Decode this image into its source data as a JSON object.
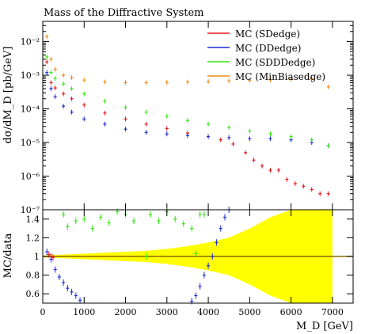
{
  "chart_data": [
    {
      "type": "scatter",
      "title": "Mass of the Diffractive System",
      "ylabel": "dσ/dM_D [pb/GeV]",
      "xlabel": "",
      "log_y": true,
      "xlim": [
        0,
        7500
      ],
      "ylim": [
        1e-07,
        0.04
      ],
      "yticks": [
        {
          "value": 1e-07,
          "label": "10⁻⁷"
        },
        {
          "value": 1e-06,
          "label": "10⁻⁶"
        },
        {
          "value": 1e-05,
          "label": "10⁻⁵"
        },
        {
          "value": 0.0001,
          "label": "10⁻⁴"
        },
        {
          "value": 0.001,
          "label": "10⁻³"
        },
        {
          "value": 0.01,
          "label": "10⁻²"
        }
      ],
      "grid": false,
      "legend_position": "top-right",
      "series": [
        {
          "name": "MC (SDedge)",
          "color": "#e8141b",
          "x": [
            100,
            200,
            300,
            500,
            700,
            1000,
            1500,
            2000,
            2500,
            3000,
            3500,
            4000,
            4300,
            4600,
            4900,
            5100,
            5300,
            5500,
            5700,
            5900,
            6100,
            6300,
            6500,
            6700,
            6900
          ],
          "y": [
            0.0025,
            0.0006,
            0.00042,
            0.00028,
            0.0002,
            0.00013,
            7.5e-05,
            5e-05,
            3.5e-05,
            2.6e-05,
            1.9e-05,
            1.5e-05,
            1.2e-05,
            9e-06,
            5e-06,
            3e-06,
            2e-06,
            1.5e-06,
            1.5e-06,
            8e-07,
            6e-07,
            5e-07,
            4e-07,
            3e-07,
            3e-07
          ]
        },
        {
          "name": "MC (DDedge)",
          "color": "#1c2bd6",
          "x": [
            100,
            200,
            300,
            500,
            700,
            1000,
            1500,
            2000,
            2500,
            3000,
            3500,
            4000,
            4500,
            5000,
            5500,
            6000,
            6500,
            6900
          ],
          "y": [
            0.0012,
            0.0004,
            0.00023,
            0.00012,
            8e-05,
            5e-05,
            3.5e-05,
            2.5e-05,
            2e-05,
            1.8e-05,
            1.6e-05,
            1.5e-05,
            1.4e-05,
            1.3e-05,
            1.3e-05,
            1.2e-05,
            1e-05,
            8e-06
          ]
        },
        {
          "name": "MC (SDDDedge)",
          "color": "#2ee80e",
          "x": [
            100,
            200,
            300,
            500,
            700,
            1000,
            1500,
            2000,
            2500,
            3000,
            3500,
            4000,
            4500,
            5000,
            5500,
            6000,
            6500,
            6900
          ],
          "y": [
            0.0035,
            0.0012,
            0.0008,
            0.00055,
            0.0004,
            0.00028,
            0.00017,
            0.00011,
            8e-05,
            6e-05,
            4.5e-05,
            3.5e-05,
            2.8e-05,
            2.2e-05,
            1.8e-05,
            1.5e-05,
            1.2e-05,
            8e-06
          ]
        },
        {
          "name": "MC (MinBiasedge)",
          "color": "#f08a1a",
          "x": [
            100,
            200,
            300,
            500,
            700,
            1000,
            1500,
            2000,
            2500,
            3000,
            3500,
            4000,
            4500,
            5000,
            5500,
            6000,
            6500,
            6900
          ],
          "y": [
            0.014,
            0.003,
            0.0015,
            0.001,
            0.00085,
            0.00072,
            0.00063,
            0.00061,
            0.0006,
            0.00061,
            0.00063,
            0.00065,
            0.00068,
            0.0007,
            0.00073,
            0.00075,
            0.00078,
            0.00045
          ]
        }
      ]
    },
    {
      "type": "scatter",
      "title": "",
      "ylabel": "MC/data",
      "xlabel": "M_D [GeV]",
      "xlim": [
        0,
        7500
      ],
      "ylim": [
        0.5,
        1.5
      ],
      "xticks": [
        0,
        1000,
        2000,
        3000,
        4000,
        5000,
        6000,
        7000
      ],
      "yticks": [
        0.6,
        0.8,
        1,
        1.2,
        1.4
      ],
      "grid": false,
      "reference_line": 1,
      "band": {
        "color": "#ffff00",
        "x": [
          0,
          500,
          1000,
          1500,
          2000,
          2500,
          3000,
          3500,
          4000,
          4500,
          5000,
          5500,
          6000,
          6500,
          7000
        ],
        "half_width": [
          0.01,
          0.02,
          0.03,
          0.04,
          0.05,
          0.06,
          0.08,
          0.11,
          0.15,
          0.2,
          0.3,
          0.42,
          0.5,
          0.5,
          0.5
        ]
      },
      "series": [
        {
          "name": "MC (SDedge)",
          "color": "#e8141b",
          "x": [
            150,
            200,
            250
          ],
          "y": [
            1.02,
            1.0,
            0.99
          ]
        },
        {
          "name": "MC (DDedge)",
          "color": "#1c2bd6",
          "x": [
            100,
            200,
            300,
            400,
            500,
            600,
            700,
            800,
            900,
            3600,
            3700,
            3800,
            3900,
            4000,
            4100,
            4200,
            4300,
            4400,
            4500
          ],
          "y": [
            1.05,
            0.97,
            0.86,
            0.78,
            0.72,
            0.66,
            0.62,
            0.58,
            0.53,
            0.52,
            0.58,
            0.68,
            0.8,
            0.9,
            1.0,
            1.15,
            1.3,
            1.42,
            1.5
          ]
        },
        {
          "name": "MC (SDDDedge)",
          "color": "#2ee80e",
          "x": [
            500,
            600,
            800,
            1000,
            1200,
            1400,
            1600,
            1800,
            2000,
            2200,
            2500,
            2600,
            2800,
            3000,
            3200,
            3400,
            3600,
            3700,
            3800,
            3900
          ],
          "y": [
            1.45,
            1.32,
            1.38,
            1.4,
            1.3,
            1.42,
            1.36,
            1.48,
            1.45,
            1.38,
            1.0,
            1.45,
            1.38,
            1.48,
            1.4,
            1.35,
            1.3,
            1.03,
            1.45,
            1.45
          ]
        }
      ]
    }
  ]
}
